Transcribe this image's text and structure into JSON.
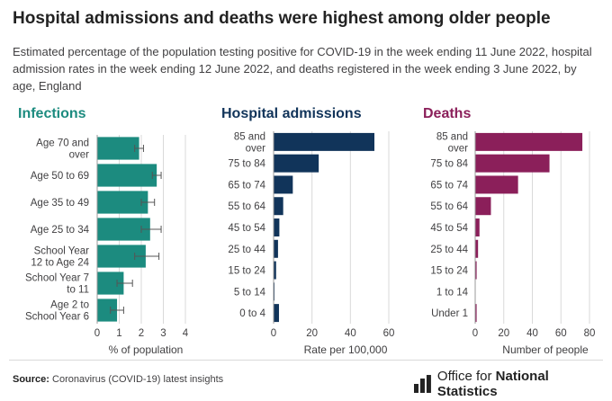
{
  "title": "Hospital admissions and deaths were highest among older people",
  "subtitle": "Estimated percentage of the population testing positive for COVID-19 in the week ending 11 June 2022, hospital admission rates in the week ending 12 June 2022, and deaths registered in the week ending 3 June 2022, by age, England",
  "source": {
    "label": "Source:",
    "text": "Coronavirus (COVID-19) latest insights"
  },
  "logo": {
    "icon": "ons-logo-icon",
    "prefix": "Office for ",
    "bold": "National Statistics"
  },
  "chart_data": [
    {
      "type": "bar",
      "orientation": "horizontal",
      "title": "Infections",
      "color": "#1c8b7f",
      "categories": [
        [
          "Age 70 and",
          "over"
        ],
        [
          "Age 50 to 69"
        ],
        [
          "Age 35 to 49"
        ],
        [
          "Age 25 to 34"
        ],
        [
          "School Year",
          "12 to Age 24"
        ],
        [
          "School Year 7",
          "to 11"
        ],
        [
          "Age 2 to",
          "School Year 6"
        ]
      ],
      "values": [
        1.9,
        2.7,
        2.3,
        2.4,
        2.2,
        1.2,
        0.9
      ],
      "error_low": [
        1.7,
        2.5,
        2.0,
        2.0,
        1.7,
        0.9,
        0.6
      ],
      "error_high": [
        2.1,
        2.9,
        2.6,
        2.9,
        2.8,
        1.6,
        1.2
      ],
      "xlim": [
        0,
        4
      ],
      "xticks": [
        0,
        1,
        2,
        3,
        4
      ],
      "xlabel": "% of population",
      "grid": true
    },
    {
      "type": "bar",
      "orientation": "horizontal",
      "title": "Hospital admissions",
      "color": "#11345a",
      "categories": [
        [
          "85 and",
          "over"
        ],
        [
          "75 to 84"
        ],
        [
          "65 to 74"
        ],
        [
          "55 to 64"
        ],
        [
          "45 to 54"
        ],
        [
          "25 to 44"
        ],
        [
          "15 to 24"
        ],
        [
          "5 to 14"
        ],
        [
          "0 to 4"
        ]
      ],
      "values": [
        52.5,
        23.5,
        10.0,
        5.0,
        3.0,
        2.3,
        1.3,
        0.3,
        2.8
      ],
      "xlim": [
        0,
        60
      ],
      "xticks": [
        0,
        20,
        40,
        60
      ],
      "xlabel": "Rate per 100,000",
      "grid": true
    },
    {
      "type": "bar",
      "orientation": "horizontal",
      "title": "Deaths",
      "color": "#8b1f5a",
      "categories": [
        [
          "85 and",
          "over"
        ],
        [
          "75 to 84"
        ],
        [
          "65 to 74"
        ],
        [
          "55 to 64"
        ],
        [
          "45 to 54"
        ],
        [
          "25 to 44"
        ],
        [
          "15 to 24"
        ],
        [
          "1 to 14"
        ],
        [
          "Under 1"
        ]
      ],
      "values": [
        75,
        52,
        30,
        11,
        3,
        2,
        1,
        0,
        1
      ],
      "xlim": [
        0,
        80
      ],
      "xticks": [
        0,
        20,
        40,
        60,
        80
      ],
      "xlabel": "Number of people",
      "grid": true
    }
  ]
}
